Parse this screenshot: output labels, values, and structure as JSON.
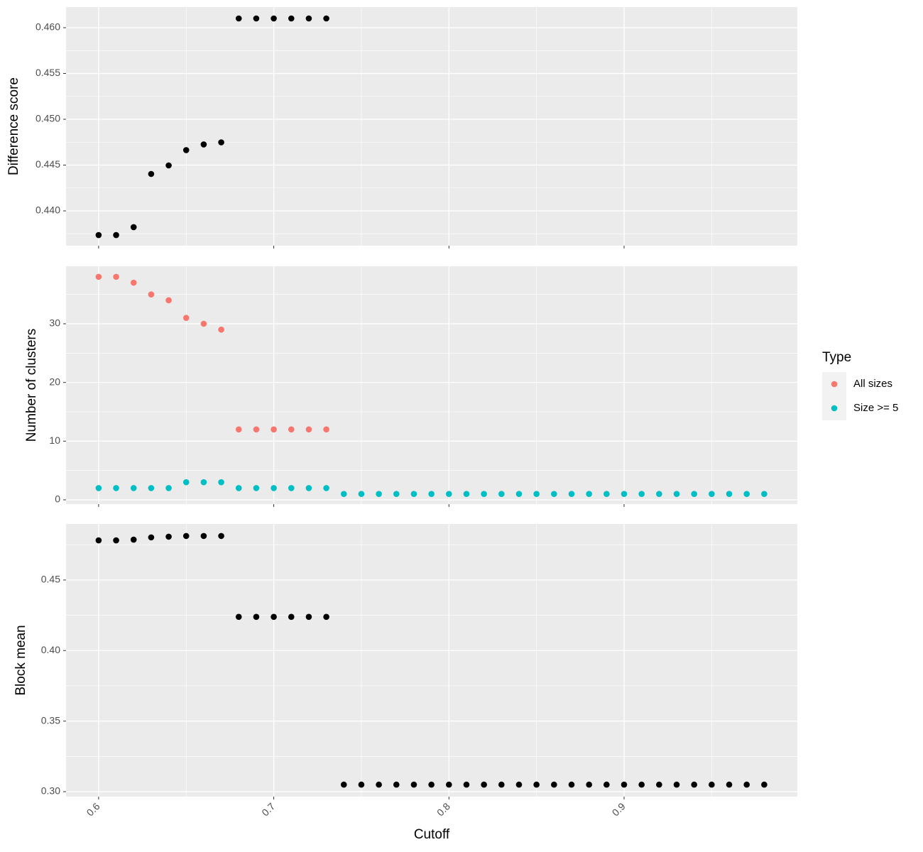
{
  "chart_data": [
    {
      "type": "scatter",
      "y_label": "Difference score",
      "color": "#000000",
      "x": [
        0.6,
        0.61,
        0.62,
        0.63,
        0.64,
        0.65,
        0.66,
        0.67,
        0.68,
        0.69,
        0.7,
        0.71,
        0.72,
        0.73
      ],
      "values": [
        0.43736,
        0.43736,
        0.43822,
        0.44403,
        0.44496,
        0.44663,
        0.44725,
        0.44748,
        0.46101,
        0.46101,
        0.46101,
        0.46101,
        0.46101,
        0.46101
      ],
      "ylim": [
        0.4362,
        0.46225
      ],
      "yticks": [
        {
          "value": 0.44,
          "label": "0.440"
        },
        0.445,
        {
          "value": 0.45,
          "label": "0.450"
        },
        0.455,
        {
          "value": 0.46,
          "label": "0.460"
        }
      ]
    },
    {
      "type": "scatter",
      "y_label": "Number of clusters",
      "legend_title": "Type",
      "x": [
        0.6,
        0.61,
        0.62,
        0.63,
        0.64,
        0.65,
        0.66,
        0.67,
        0.68,
        0.69,
        0.7,
        0.71,
        0.72,
        0.73,
        0.74,
        0.75,
        0.76,
        0.77,
        0.78,
        0.79,
        0.8,
        0.81,
        0.82,
        0.83,
        0.84,
        0.85,
        0.86,
        0.87,
        0.88,
        0.89,
        0.9,
        0.91,
        0.92,
        0.93,
        0.94,
        0.95,
        0.96,
        0.97,
        0.98
      ],
      "series": [
        {
          "name": "All sizes",
          "color": "#F8766D",
          "values": [
            38,
            38,
            37,
            35,
            34,
            31,
            30,
            29,
            12,
            12,
            12,
            12,
            12,
            12,
            null,
            null,
            null,
            null,
            null,
            null,
            null,
            null,
            null,
            null,
            null,
            null,
            null,
            null,
            null,
            null,
            null,
            null,
            null,
            null,
            null,
            null,
            null,
            null,
            null
          ]
        },
        {
          "name": "Size >= 5",
          "color": "#00BFC4",
          "values": [
            2,
            2,
            2,
            2,
            2,
            3,
            3,
            3,
            2,
            2,
            2,
            2,
            2,
            2,
            1,
            1,
            1,
            1,
            1,
            1,
            1,
            1,
            1,
            1,
            1,
            1,
            1,
            1,
            1,
            1,
            1,
            1,
            1,
            1,
            1,
            1,
            1,
            1,
            1
          ]
        }
      ],
      "ylim": [
        -0.73,
        39.8
      ],
      "yticks": [
        0,
        10,
        20,
        30
      ]
    },
    {
      "type": "scatter",
      "y_label": "Block mean",
      "x_label": "Cutoff",
      "color": "#000000",
      "x": [
        0.6,
        0.61,
        0.62,
        0.63,
        0.64,
        0.65,
        0.66,
        0.67,
        0.68,
        0.69,
        0.7,
        0.71,
        0.72,
        0.73,
        0.74,
        0.75,
        0.76,
        0.77,
        0.78,
        0.79,
        0.8,
        0.81,
        0.82,
        0.83,
        0.84,
        0.85,
        0.86,
        0.87,
        0.88,
        0.89,
        0.9,
        0.91,
        0.92,
        0.93,
        0.94,
        0.95,
        0.96,
        0.97,
        0.98
      ],
      "values": [
        0.4781,
        0.4781,
        0.4786,
        0.4802,
        0.4807,
        0.4812,
        0.4812,
        0.4812,
        0.4239,
        0.4239,
        0.4239,
        0.4239,
        0.4239,
        0.4239,
        0.305,
        0.305,
        0.305,
        0.305,
        0.305,
        0.305,
        0.305,
        0.305,
        0.305,
        0.305,
        0.305,
        0.305,
        0.305,
        0.305,
        0.305,
        0.305,
        0.305,
        0.305,
        0.305,
        0.305,
        0.305,
        0.305,
        0.305,
        0.305,
        0.305
      ],
      "ylim": [
        0.2965,
        0.4897
      ],
      "yticks": [
        {
          "value": 0.3,
          "label": "0.30"
        },
        0.35,
        {
          "value": 0.4,
          "label": "0.40"
        },
        0.45
      ],
      "xlim": [
        0.5814,
        0.9989
      ],
      "xticks": [
        0.6,
        0.7,
        0.8,
        0.9
      ]
    }
  ]
}
